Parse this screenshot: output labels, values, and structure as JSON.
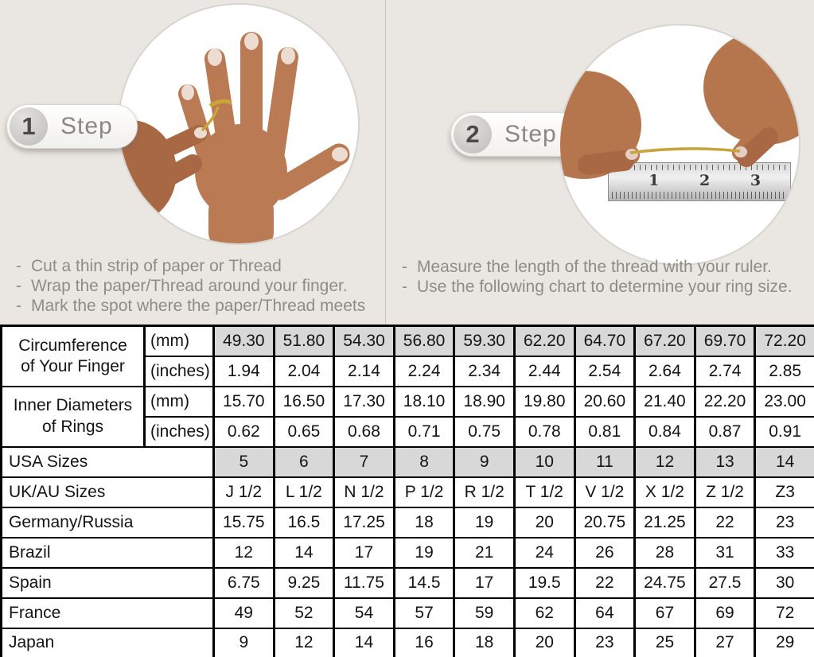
{
  "ui": {
    "bullet": "-"
  },
  "colors": {
    "background": "#eae7e2",
    "table_shaded_cell": "#d8d8d8",
    "thread_gold": "#c9a43b",
    "table_border": "#000000",
    "instruction_text": "#8f8c87"
  },
  "steps": [
    {
      "number": "1",
      "label": "Step",
      "instructions": [
        "Cut a thin strip of paper or Thread",
        "Wrap the paper/Thread around your finger.",
        "Mark the spot where the paper/Thread meets"
      ]
    },
    {
      "number": "2",
      "label": "Step",
      "instructions": [
        "Measure the length of the thread with your ruler.",
        "Use the following chart to determine your ring size."
      ]
    }
  ],
  "step1_image": {
    "description": "hand with gold thread wrapped around ring finger"
  },
  "step2_image": {
    "description": "two hands measuring gold thread against a steel ruler",
    "ruler_numbers": [
      "1",
      "2",
      "3"
    ]
  },
  "table": {
    "groups": [
      {
        "label_line1": "Circumference",
        "label_line2": "of Your Finger",
        "sub": [
          {
            "unit": "(mm)",
            "shaded": true,
            "values": [
              "49.30",
              "51.80",
              "54.30",
              "56.80",
              "59.30",
              "62.20",
              "64.70",
              "67.20",
              "69.70",
              "72.20"
            ]
          },
          {
            "unit": "(inches)",
            "shaded": false,
            "values": [
              "1.94",
              "2.04",
              "2.14",
              "2.24",
              "2.34",
              "2.44",
              "2.54",
              "2.64",
              "2.74",
              "2.85"
            ]
          }
        ]
      },
      {
        "label_line1": "Inner Diameters",
        "label_line2": "of Rings",
        "sub": [
          {
            "unit": "(mm)",
            "shaded": false,
            "values": [
              "15.70",
              "16.50",
              "17.30",
              "18.10",
              "18.90",
              "19.80",
              "20.60",
              "21.40",
              "22.20",
              "23.00"
            ]
          },
          {
            "unit": "(inches)",
            "shaded": false,
            "values": [
              "0.62",
              "0.65",
              "0.68",
              "0.71",
              "0.75",
              "0.78",
              "0.81",
              "0.84",
              "0.87",
              "0.91"
            ]
          }
        ]
      }
    ],
    "simple_rows": [
      {
        "label": "USA Sizes",
        "shaded": true,
        "values": [
          "5",
          "6",
          "7",
          "8",
          "9",
          "10",
          "11",
          "12",
          "13",
          "14"
        ]
      },
      {
        "label": "UK/AU Sizes",
        "shaded": false,
        "values": [
          "J 1/2",
          "L 1/2",
          "N 1/2",
          "P 1/2",
          "R 1/2",
          "T 1/2",
          "V 1/2",
          "X 1/2",
          "Z 1/2",
          "Z3"
        ]
      },
      {
        "label": "Germany/Russia",
        "shaded": false,
        "values": [
          "15.75",
          "16.5",
          "17.25",
          "18",
          "19",
          "20",
          "20.75",
          "21.25",
          "22",
          "23"
        ]
      },
      {
        "label": "Brazil",
        "shaded": false,
        "values": [
          "12",
          "14",
          "17",
          "19",
          "21",
          "24",
          "26",
          "28",
          "31",
          "33"
        ]
      },
      {
        "label": "Spain",
        "shaded": false,
        "values": [
          "6.75",
          "9.25",
          "11.75",
          "14.5",
          "17",
          "19.5",
          "22",
          "24.75",
          "27.5",
          "30"
        ]
      },
      {
        "label": "France",
        "shaded": false,
        "values": [
          "49",
          "52",
          "54",
          "57",
          "59",
          "62",
          "64",
          "67",
          "69",
          "72"
        ]
      },
      {
        "label": "Japan",
        "shaded": false,
        "values": [
          "9",
          "12",
          "14",
          "16",
          "18",
          "20",
          "23",
          "25",
          "27",
          "29"
        ]
      }
    ]
  }
}
